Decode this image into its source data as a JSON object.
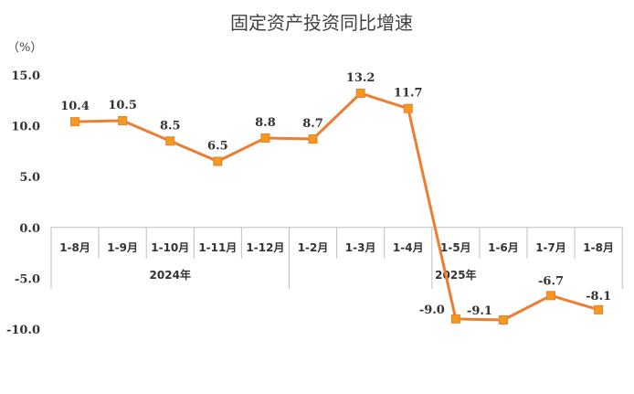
{
  "chart_data": {
    "type": "line",
    "title": "固定资产投资同比增速",
    "unit_label": "（%）",
    "categories": [
      "1-8月",
      "1-9月",
      "1-10月",
      "1-11月",
      "1-12月",
      "1-2月",
      "1-3月",
      "1-4月",
      "1-5月",
      "1-6月",
      "1-7月",
      "1-8月"
    ],
    "year_labels": [
      "2024年",
      "2025年"
    ],
    "series": [
      {
        "values": [
          10.4,
          10.5,
          8.5,
          6.5,
          8.8,
          8.7,
          13.2,
          11.7,
          -9.0,
          -9.1,
          -6.7,
          -8.1
        ],
        "data_labels": [
          "10.4",
          "10.5",
          "8.5",
          "6.5",
          "8.8",
          "8.7",
          "13.2",
          "11.7",
          "-9.0",
          "-9.1",
          "-6.7",
          "-8.1"
        ]
      }
    ],
    "yticks": [
      15,
      10,
      5,
      0,
      -5,
      -10
    ],
    "ytick_labels": [
      "15.0",
      "10.0",
      "5.0",
      "0.0",
      "-5.0",
      "-10.0"
    ],
    "ylim": [
      -10,
      15
    ],
    "grid": false,
    "legend": "none",
    "colors": {
      "line": "#ED7D31",
      "marker": "#F39A1E",
      "axis": "#BFBFBF"
    }
  }
}
